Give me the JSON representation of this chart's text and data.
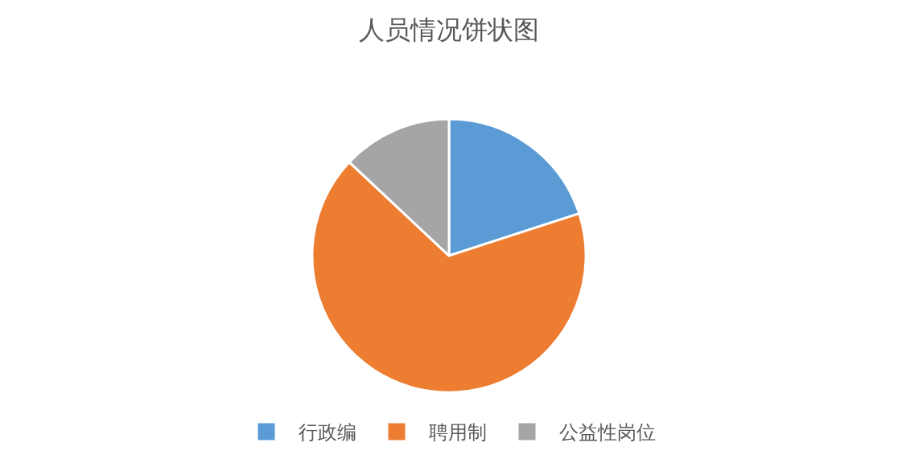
{
  "chart_data": {
    "type": "pie",
    "title": "人员情况饼状图",
    "categories": [
      "行政编",
      "聘用制",
      "公益性岗位"
    ],
    "values": [
      20,
      67,
      13
    ],
    "colors": [
      "#5b9bd5",
      "#ed7d31",
      "#a5a5a5"
    ],
    "legend": "bottom"
  }
}
